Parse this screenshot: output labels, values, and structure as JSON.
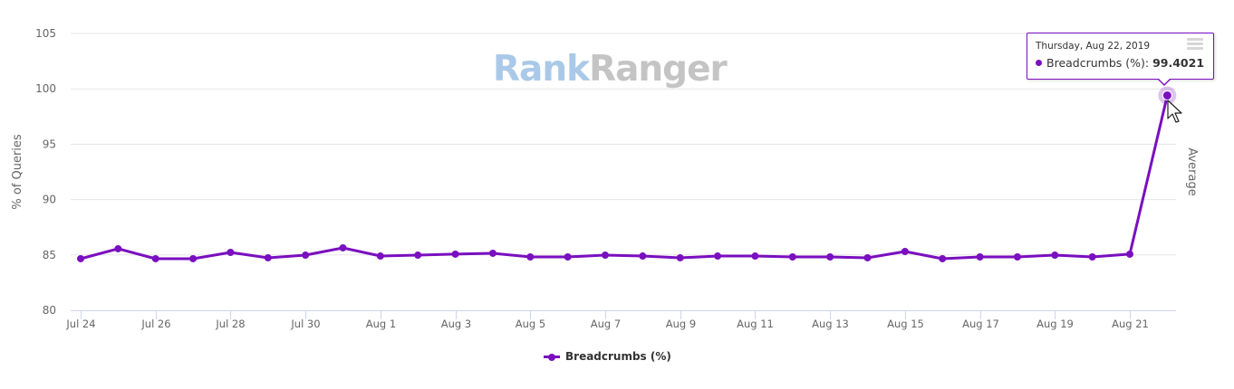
{
  "watermark": {
    "part1": "Rank",
    "part2": "Ranger"
  },
  "menu": {
    "icon": "hamburger-menu-icon"
  },
  "tooltip": {
    "date": "Thursday, Aug 22, 2019",
    "series": "Breadcrumbs (%): ",
    "value": "99.4021"
  },
  "legend": {
    "label": "Breadcrumbs (%)"
  },
  "colors": {
    "series": "#7a0fbf",
    "grid": "#e6e6e6",
    "axis": "#ccd6eb",
    "text": "#666666"
  },
  "chart_data": {
    "type": "line",
    "title": "",
    "xlabel": "",
    "ylabel": "% of Queries",
    "ylabel_right": "Average",
    "ylim": [
      80,
      105
    ],
    "yticks": [
      80,
      85,
      90,
      95,
      100,
      105
    ],
    "grid": true,
    "legend_position": "bottom",
    "x": [
      "Jul 24",
      "Jul 25",
      "Jul 26",
      "Jul 27",
      "Jul 28",
      "Jul 29",
      "Jul 30",
      "Jul 31",
      "Aug 1",
      "Aug 2",
      "Aug 3",
      "Aug 4",
      "Aug 5",
      "Aug 6",
      "Aug 7",
      "Aug 8",
      "Aug 9",
      "Aug 10",
      "Aug 11",
      "Aug 12",
      "Aug 13",
      "Aug 14",
      "Aug 15",
      "Aug 16",
      "Aug 17",
      "Aug 18",
      "Aug 19",
      "Aug 20",
      "Aug 21",
      "Aug 22"
    ],
    "xtick_labels": [
      "Jul 24",
      "Jul 26",
      "Jul 28",
      "Jul 30",
      "Aug 1",
      "Aug 3",
      "Aug 5",
      "Aug 7",
      "Aug 9",
      "Aug 11",
      "Aug 13",
      "Aug 15",
      "Aug 17",
      "Aug 19",
      "Aug 21"
    ],
    "series": [
      {
        "name": "Breadcrumbs (%)",
        "color": "#7a0fbf",
        "values": [
          84.66,
          85.56,
          84.66,
          84.66,
          85.23,
          84.74,
          84.98,
          85.64,
          84.9,
          84.98,
          85.07,
          85.15,
          84.82,
          84.82,
          84.98,
          84.9,
          84.74,
          84.9,
          84.9,
          84.82,
          84.82,
          84.74,
          85.31,
          84.66,
          84.82,
          84.82,
          84.98,
          84.82,
          85.07,
          99.4021
        ]
      }
    ],
    "annotations": [
      {
        "type": "tooltip",
        "x": "Aug 22",
        "text": "Thursday, Aug 22, 2019 — Breadcrumbs (%): 99.4021"
      }
    ]
  }
}
